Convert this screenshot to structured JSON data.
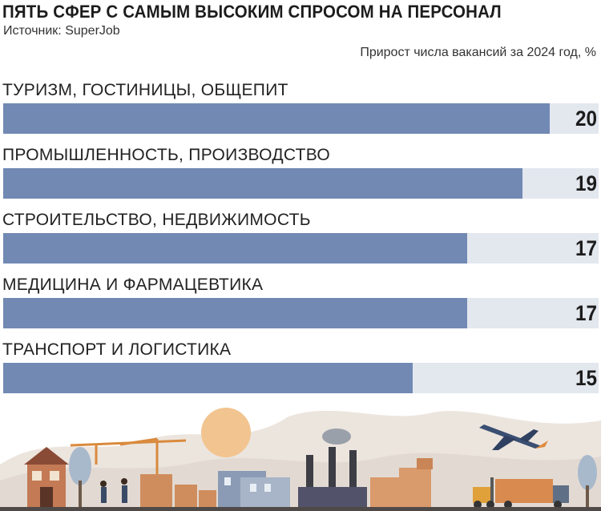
{
  "header": {
    "title": "ПЯТЬ СФЕР С САМЫМ ВЫСОКИМ СПРОСОМ НА ПЕРСОНАЛ",
    "source": "Источник: SuperJob",
    "unit_note": "Прирост числа вакансий за 2024 год, %"
  },
  "colors": {
    "bar": "#7189b3",
    "track": "#e3e7ee",
    "sun": "#f2c48f"
  },
  "chart_data": {
    "type": "bar",
    "orientation": "horizontal",
    "title": "ПЯТЬ СФЕР С САМЫМ ВЫСОКИМ СПРОСОМ НА ПЕРСОНАЛ",
    "subtitle": "Прирост числа вакансий за 2024 год, %",
    "categories": [
      "ТУРИЗМ, ГОСТИНИЦЫ, ОБЩЕПИТ",
      "ПРОМЫШЛЕННОСТЬ, ПРОИЗВОДСТВО",
      "СТРОИТЕЛЬСТВО, НЕДВИЖИМОСТЬ",
      "МЕДИЦИНА И ФАРМАЦЕВТИКА",
      "ТРАНСПОРТ И ЛОГИСТИКА"
    ],
    "values": [
      20,
      19,
      17,
      17,
      15
    ],
    "xlim": [
      0,
      21.8
    ],
    "grid": false,
    "legend": "none"
  }
}
